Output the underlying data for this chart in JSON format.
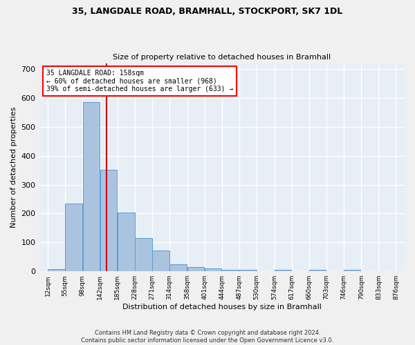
{
  "title1": "35, LANGDALE ROAD, BRAMHALL, STOCKPORT, SK7 1DL",
  "title2": "Size of property relative to detached houses in Bramhall",
  "xlabel": "Distribution of detached houses by size in Bramhall",
  "ylabel": "Number of detached properties",
  "footer": "Contains HM Land Registry data © Crown copyright and database right 2024.\nContains public sector information licensed under the Open Government Licence v3.0.",
  "annotation_line1": "35 LANGDALE ROAD: 158sqm",
  "annotation_line2": "← 60% of detached houses are smaller (968)",
  "annotation_line3": "39% of semi-detached houses are larger (633) →",
  "property_line_x": 158,
  "bar_edges": [
    12,
    55,
    98,
    142,
    185,
    228,
    271,
    314,
    358,
    401,
    444,
    487,
    530,
    574,
    617,
    660,
    703,
    746,
    790,
    833,
    876
  ],
  "bar_heights": [
    8,
    235,
    585,
    352,
    203,
    115,
    73,
    25,
    14,
    10,
    5,
    5,
    0,
    5,
    0,
    5,
    0,
    5,
    0,
    0
  ],
  "bar_color": "#aac4e0",
  "bar_edge_color": "#5b9bd5",
  "vline_color": "#cc0000",
  "background_color": "#e8eef5",
  "grid_color": "#ffffff",
  "fig_background": "#f0f0f0",
  "ylim": [
    0,
    720
  ],
  "yticks": [
    0,
    100,
    200,
    300,
    400,
    500,
    600,
    700
  ]
}
